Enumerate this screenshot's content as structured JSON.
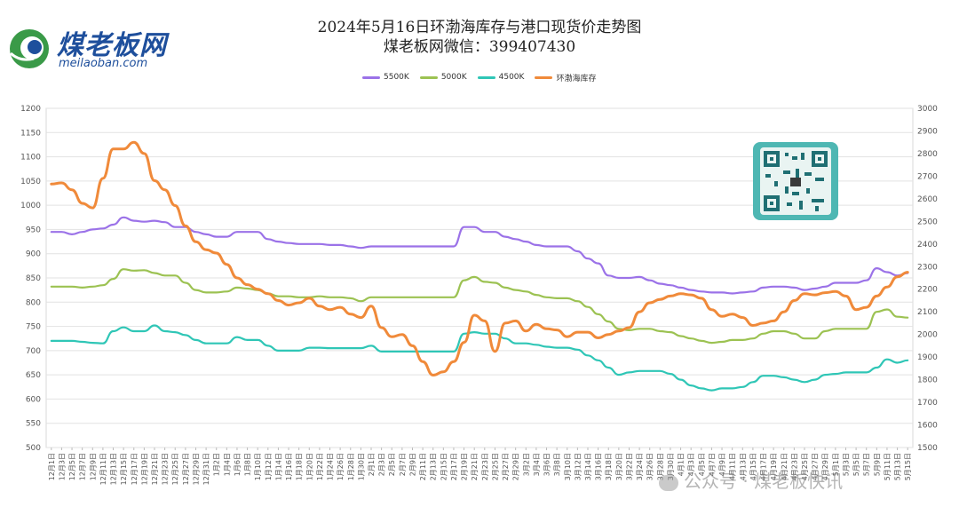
{
  "logo": {
    "name_cn": "煤老板网",
    "name_en": "meilaoban.com"
  },
  "watermark": "公众号 · 煤老板快讯",
  "colors": {
    "s5500": "#9b72e8",
    "s5000": "#9cc252",
    "s4500": "#2fc6b6",
    "stock": "#f08a3a"
  },
  "chart_data": {
    "type": "line",
    "title": "2024年5月16日环渤海库存与港口现货价走势图",
    "subtitle": "煤老板网微信：399407430",
    "legend_position": "top-center",
    "grid": true,
    "ylim": [
      500,
      1200
    ],
    "yticks": [
      500,
      550,
      600,
      650,
      700,
      750,
      800,
      850,
      900,
      950,
      1000,
      1050,
      1100,
      1150,
      1200
    ],
    "y2lim": [
      1500,
      3000
    ],
    "y2ticks": [
      1500,
      1600,
      1700,
      1800,
      1900,
      2000,
      2100,
      2200,
      2300,
      2400,
      2500,
      2600,
      2700,
      2800,
      2900,
      3000
    ],
    "x_labels": [
      "12月1日",
      "12月3日",
      "12月5日",
      "12月7日",
      "12月9日",
      "12月11日",
      "12月13日",
      "12月15日",
      "12月17日",
      "12月19日",
      "12月21日",
      "12月23日",
      "12月25日",
      "12月27日",
      "12月29日",
      "12月31日",
      "1月2日",
      "1月4日",
      "1月6日",
      "1月8日",
      "1月10日",
      "1月12日",
      "1月14日",
      "1月16日",
      "1月18日",
      "1月20日",
      "1月22日",
      "1月24日",
      "1月26日",
      "1月28日",
      "1月30日",
      "2月1日",
      "2月3日",
      "2月5日",
      "2月7日",
      "2月9日",
      "2月11日",
      "2月13日",
      "2月15日",
      "2月17日",
      "2月19日",
      "2月21日",
      "2月23日",
      "2月25日",
      "2月27日",
      "2月29日",
      "3月2日",
      "3月4日",
      "3月6日",
      "3月8日",
      "3月10日",
      "3月12日",
      "3月14日",
      "3月16日",
      "3月18日",
      "3月20日",
      "3月22日",
      "3月24日",
      "3月26日",
      "3月28日",
      "3月30日",
      "4月1日",
      "4月3日",
      "4月5日",
      "4月7日",
      "4月9日",
      "4月11日",
      "4月13日",
      "4月15日",
      "4月17日",
      "4月19日",
      "4月21日",
      "4月23日",
      "4月25日",
      "4月27日",
      "4月29日",
      "5月1日",
      "5月3日",
      "5月5日",
      "5月7日",
      "5月9日",
      "5月11日",
      "5月13日",
      "5月15日"
    ],
    "series": [
      {
        "name": "5500K",
        "axis": "left",
        "color": "#9b72e8",
        "values": [
          945,
          945,
          940,
          945,
          950,
          952,
          960,
          975,
          968,
          966,
          968,
          965,
          955,
          955,
          945,
          940,
          935,
          935,
          945,
          945,
          945,
          930,
          925,
          922,
          920,
          920,
          920,
          918,
          918,
          915,
          912,
          915,
          915,
          915,
          915,
          915,
          915,
          915,
          915,
          915,
          955,
          955,
          945,
          945,
          935,
          930,
          925,
          918,
          915,
          915,
          915,
          905,
          890,
          880,
          855,
          850,
          850,
          852,
          845,
          838,
          835,
          830,
          825,
          822,
          820,
          820,
          818,
          820,
          822,
          830,
          832,
          832,
          830,
          825,
          828,
          832,
          840,
          840,
          840,
          845,
          870,
          862,
          855,
          860
        ]
      },
      {
        "name": "5000K",
        "axis": "left",
        "color": "#9cc252",
        "values": [
          832,
          832,
          832,
          830,
          832,
          835,
          848,
          868,
          865,
          866,
          860,
          855,
          855,
          840,
          825,
          820,
          820,
          822,
          830,
          828,
          825,
          818,
          812,
          812,
          810,
          810,
          812,
          810,
          810,
          808,
          802,
          810,
          810,
          810,
          810,
          810,
          810,
          810,
          810,
          810,
          845,
          852,
          842,
          840,
          830,
          825,
          822,
          815,
          810,
          808,
          808,
          802,
          790,
          775,
          760,
          745,
          742,
          745,
          745,
          740,
          738,
          730,
          725,
          720,
          716,
          718,
          722,
          722,
          725,
          735,
          740,
          740,
          735,
          725,
          725,
          740,
          745,
          745,
          745,
          745,
          780,
          785,
          770,
          768
        ]
      },
      {
        "name": "4500K",
        "axis": "left",
        "color": "#2fc6b6",
        "values": [
          720,
          720,
          720,
          718,
          716,
          715,
          740,
          748,
          740,
          740,
          752,
          740,
          738,
          732,
          722,
          715,
          715,
          715,
          728,
          722,
          722,
          710,
          700,
          700,
          700,
          706,
          706,
          705,
          705,
          705,
          705,
          710,
          698,
          698,
          698,
          698,
          698,
          698,
          698,
          698,
          735,
          738,
          735,
          735,
          725,
          715,
          715,
          712,
          708,
          706,
          706,
          702,
          690,
          680,
          665,
          650,
          655,
          658,
          658,
          658,
          652,
          640,
          628,
          622,
          618,
          622,
          622,
          625,
          635,
          648,
          648,
          645,
          640,
          635,
          640,
          650,
          652,
          655,
          655,
          655,
          665,
          682,
          675,
          680
        ]
      },
      {
        "name": "环渤海库存",
        "axis": "right",
        "color": "#f08a3a",
        "values": [
          2665,
          2670,
          2640,
          2580,
          2560,
          2690,
          2820,
          2820,
          2850,
          2800,
          2680,
          2640,
          2570,
          2480,
          2410,
          2375,
          2360,
          2310,
          2250,
          2220,
          2200,
          2180,
          2150,
          2130,
          2140,
          2160,
          2125,
          2110,
          2120,
          2090,
          2075,
          2125,
          2030,
          1990,
          2000,
          1950,
          1880,
          1820,
          1835,
          1880,
          1965,
          2085,
          2060,
          1925,
          2050,
          2060,
          2015,
          2045,
          2025,
          2020,
          1990,
          2010,
          2010,
          1985,
          2000,
          2015,
          2030,
          2100,
          2140,
          2155,
          2170,
          2180,
          2175,
          2160,
          2110,
          2080,
          2090,
          2075,
          2040,
          2050,
          2060,
          2100,
          2150,
          2180,
          2175,
          2185,
          2190,
          2170,
          2110,
          2120,
          2170,
          2210,
          2255,
          2275
        ]
      }
    ]
  }
}
